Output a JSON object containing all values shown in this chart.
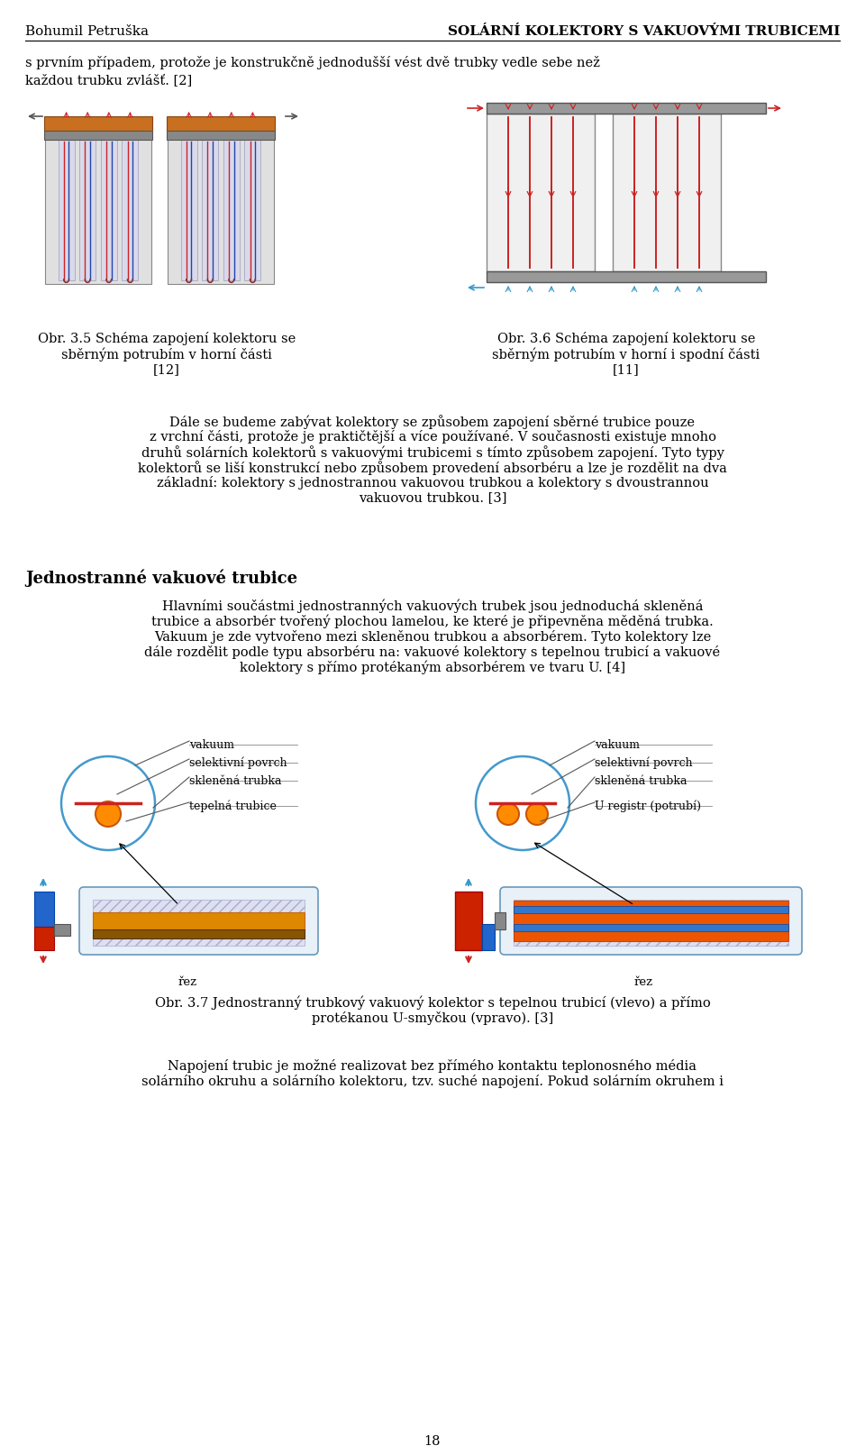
{
  "page_width": 9.6,
  "page_height": 16.15,
  "bg_color": "#ffffff",
  "header_left": "Bohumil Petruška",
  "header_right": "SOLÁRNÍ KOLEKTORY S VAKUOVÝMI TRUBICEMI",
  "header_fontsize": 11,
  "para1": "s prvním případem, protože je konstrukčně jednodušší vést dvě trubky vedle sebe než",
  "para1b": "každou trubku zvlášť. [2]",
  "body_fontsize": 10.5,
  "caption35": "Obr. 3.5 Schéma zapojení kolektoru se\nsběrným potrubím v horní části\n[12]",
  "caption36": "Obr. 3.6 Schéma zapojení kolektoru se\nsběrným potrubím v horní i spodní části\n[11]",
  "caption_fontsize": 10.5,
  "para2": "Dále se budeme zabývat kolektory se způsobem zapojení sběrné trubice pouze\nz vrchní části, protože je praktičtější a více používané. V současnosti existuje mnoho\ndruhů solárních kolektorů s vakuovými trubicemi s tímto způsobem zapojení. Tyto typy\nkolektorů se liší konstrukcí nebo způsobem provedení absorbéru a lze je rozdělit na dva\nzákladní: kolektory s jednostrannou vakuovou trubkou a kolektory s dvoustrannou\nvakuovou trubkou. [3]",
  "section_title": "Jednostranné vakuové trubice",
  "section_fontsize": 13,
  "para3": "Hlavními součástmi jednostranných vakuových trubek jsou jednoduchá skleněná\ntrubice a absorbér tvořený plochou lamelou, ke které je připevněna měděná trubka.\nVakuum je zde vytvořeno mezi skleněnou trubkou a absorbérem. Tyto kolektory lze\ndále rozdělit podle typu absorbéru na: vakuové kolektory s tepelnou trubicí a vakuové\nkolektory s přímo protékaným absorbérem ve tvaru U. [4]",
  "caption37": "Obr. 3.7 Jednostranný trubkový vakuový kolektor s tepelnou trubicí (vlevo) a přímo\nprotékanou U-smyčkou (vpravo). [3]",
  "caption37_fontsize": 10.5,
  "para4": "Napojení trubic je možné realizovat bez přímého kontaktu teplonosného média\nsolárního okruhu a solárního kolektoru, tzv. suché napojení. Pokud solárním okruhem i",
  "page_number": "18",
  "label_vakuum_l": "vakuum",
  "label_sel_l": "selektivní povrch",
  "label_skl_l": "skleněná trubka",
  "label_tep_l": "tepelná trubice",
  "label_vakuum_r": "vakuum",
  "label_sel_r": "selektivní povrch",
  "label_skl_r": "skleněná trubka",
  "label_ureg_r": "U registr (potrubí)",
  "label_rez": "řez"
}
